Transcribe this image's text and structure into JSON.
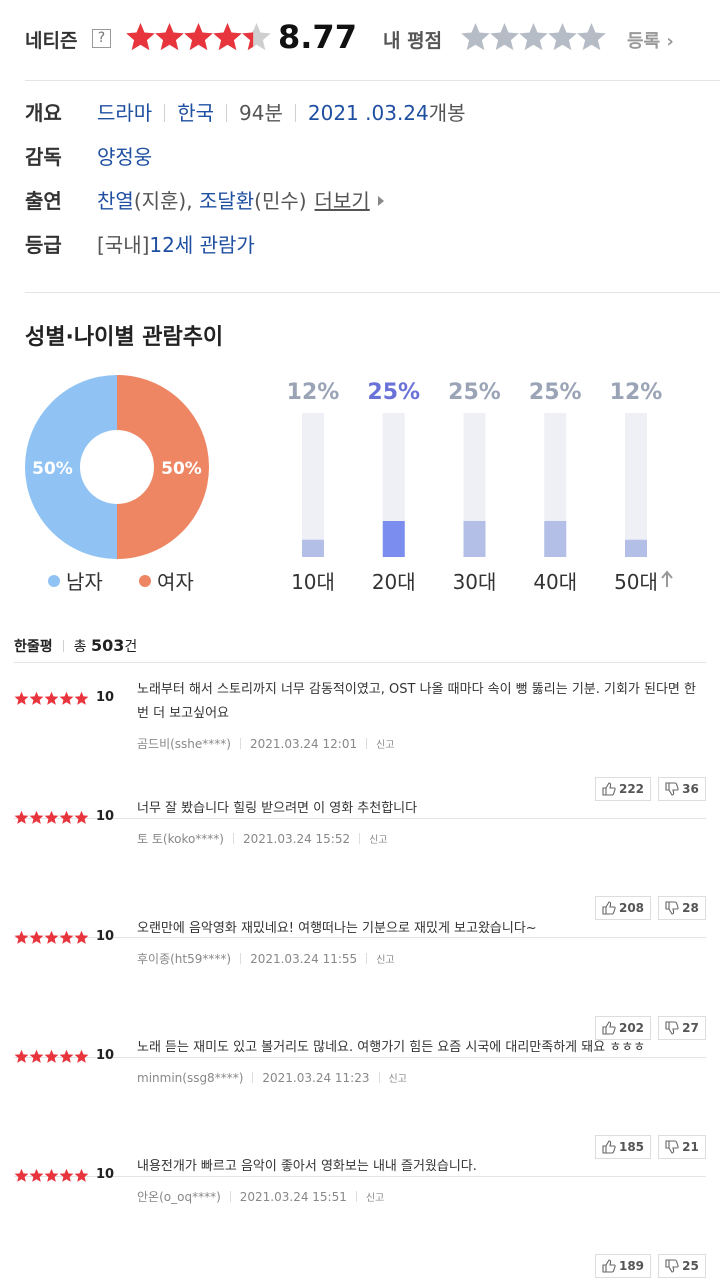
{
  "rating": {
    "label": "네티즌",
    "help": "?",
    "score": 8.77,
    "max": 10,
    "my_label": "내 평점",
    "register": "등록"
  },
  "info": [
    {
      "label": "개요",
      "parts": [
        {
          "text": "드라마",
          "link": true
        },
        {
          "text": "한국",
          "link": true,
          "sep": true
        },
        {
          "text": "94분",
          "sep": true
        },
        {
          "text": "2021 .03.24",
          "link": true,
          "sep": true
        },
        {
          "text": "개봉"
        }
      ]
    },
    {
      "label": "감독",
      "parts": [
        {
          "text": "양정웅",
          "link": true
        }
      ]
    },
    {
      "label": "출연",
      "parts": [
        {
          "text": "찬열",
          "link": true
        },
        {
          "text": "(지훈), "
        },
        {
          "text": "조달환",
          "link": true
        },
        {
          "text": "(민수)"
        },
        {
          "text": "더보기",
          "more": true
        }
      ]
    },
    {
      "label": "등급",
      "parts": [
        {
          "text": "[국내]"
        },
        {
          "text": "12세 관람가",
          "link": true
        }
      ]
    }
  ],
  "trend": {
    "title": "성별·나이별 관람추이",
    "gender": {
      "type": "pie",
      "categories": [
        "남자",
        "여자"
      ],
      "values": [
        50,
        50
      ],
      "value_labels": [
        "50%",
        "50%"
      ],
      "colors": [
        "#90c3f4",
        "#ee8664"
      ]
    },
    "age": {
      "type": "bar",
      "categories": [
        "10대",
        "20대",
        "30대",
        "40대",
        "50대"
      ],
      "values": [
        12,
        25,
        25,
        25,
        12
      ],
      "value_labels": [
        "12%",
        "25%",
        "25%",
        "25%",
        "12%"
      ],
      "ylim": [
        0,
        100
      ],
      "color": "#b3bfe6",
      "highlight": 1,
      "highlight_color": "#7b8ef0"
    }
  },
  "reviews": {
    "title": "한줄평",
    "total_prefix": "총",
    "total": 503,
    "total_suffix": "건",
    "report": "신고",
    "items": [
      {
        "score": 10,
        "text": "노래부터 해서 스토리까지 너무 감동적이였고, OST 나올 때마다 속이 뻥 뚫리는 기분. 기회가 된다면 한 번 더 보고싶어요",
        "author": "곰드비(sshe****)",
        "date": "2021.03.24 12:01",
        "likes": 222,
        "dislikes": 36
      },
      {
        "score": 10,
        "text": "너무 잘 봤습니다 힐링 받으려면 이 영화 추천합니다",
        "author": "토 토(koko****)",
        "date": "2021.03.24 15:52",
        "likes": 208,
        "dislikes": 28
      },
      {
        "score": 10,
        "text": "오랜만에 음악영화 재밌네요! 여행떠나는 기분으로 재밌게 보고왔습니다~",
        "author": "후이종(ht59****)",
        "date": "2021.03.24 11:55",
        "likes": 202,
        "dislikes": 27
      },
      {
        "score": 10,
        "text": "노래 듣는 재미도 있고 볼거리도 많네요. 여행가기 힘든 요즘 시국에 대리만족하게 돼요 ㅎㅎㅎ",
        "author": "minmin(ssg8****)",
        "date": "2021.03.24 11:23",
        "likes": 185,
        "dislikes": 21
      },
      {
        "score": 10,
        "text": "내용전개가 빠르고 음악이 좋아서 영화보는 내내 즐거웠습니다.",
        "author": "안온(o_oq****)",
        "date": "2021.03.24 15:51",
        "likes": 189,
        "dislikes": 25
      }
    ]
  }
}
